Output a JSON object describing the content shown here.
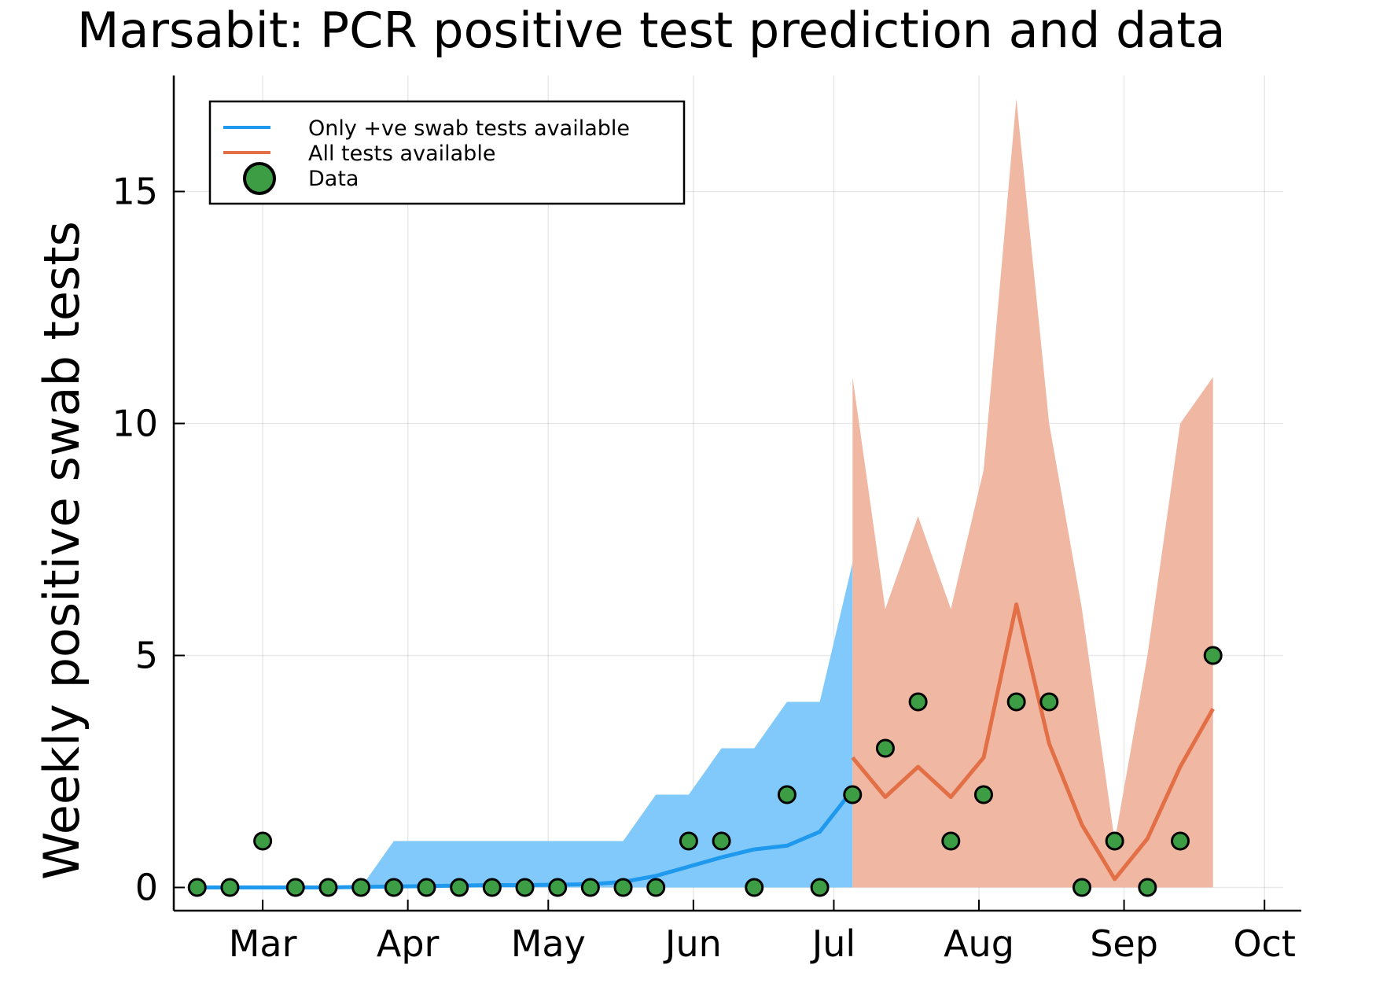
{
  "chart_data": {
    "type": "line",
    "title": "Marsabit: PCR positive test prediction and data",
    "xlabel": "",
    "ylabel": "Weekly positive swab tests",
    "x_axis": {
      "kind": "date",
      "range": [
        "2020-02-11",
        "2020-10-05"
      ],
      "ticks": [
        {
          "date": "2020-03-01",
          "label": "Mar"
        },
        {
          "date": "2020-04-01",
          "label": "Apr"
        },
        {
          "date": "2020-05-01",
          "label": "May"
        },
        {
          "date": "2020-06-01",
          "label": "Jun"
        },
        {
          "date": "2020-07-01",
          "label": "Jul"
        },
        {
          "date": "2020-08-01",
          "label": "Aug"
        },
        {
          "date": "2020-09-01",
          "label": "Sep"
        },
        {
          "date": "2020-10-01",
          "label": "Oct"
        }
      ]
    },
    "y_axis": {
      "range": [
        -0.5,
        17.5
      ],
      "ticks": [
        {
          "value": 0,
          "label": "0"
        },
        {
          "value": 5,
          "label": "5"
        },
        {
          "value": 10,
          "label": "10"
        },
        {
          "value": 15,
          "label": "15"
        }
      ]
    },
    "grid": true,
    "legend_position": "top-left",
    "series": [
      {
        "name": "Only +ve swab tests available",
        "color": "#1f99ee",
        "band_color": "#80c9fa",
        "points": [
          {
            "date": "2020-02-16",
            "y": 0,
            "lo": 0,
            "hi": 0
          },
          {
            "date": "2020-02-23",
            "y": 0,
            "lo": 0,
            "hi": 0
          },
          {
            "date": "2020-03-01",
            "y": 0,
            "lo": 0,
            "hi": 0
          },
          {
            "date": "2020-03-08",
            "y": 0,
            "lo": 0,
            "hi": 0
          },
          {
            "date": "2020-03-15",
            "y": 0,
            "lo": 0,
            "hi": 0
          },
          {
            "date": "2020-03-22",
            "y": 0.01,
            "lo": 0,
            "hi": 0
          },
          {
            "date": "2020-03-29",
            "y": 0.02,
            "lo": 0,
            "hi": 1
          },
          {
            "date": "2020-04-05",
            "y": 0.03,
            "lo": 0,
            "hi": 1
          },
          {
            "date": "2020-04-12",
            "y": 0.04,
            "lo": 0,
            "hi": 1
          },
          {
            "date": "2020-04-19",
            "y": 0.05,
            "lo": 0,
            "hi": 1
          },
          {
            "date": "2020-04-26",
            "y": 0.05,
            "lo": 0,
            "hi": 1
          },
          {
            "date": "2020-05-03",
            "y": 0.06,
            "lo": 0,
            "hi": 1
          },
          {
            "date": "2020-05-10",
            "y": 0.07,
            "lo": 0,
            "hi": 1
          },
          {
            "date": "2020-05-17",
            "y": 0.12,
            "lo": 0,
            "hi": 1
          },
          {
            "date": "2020-05-24",
            "y": 0.25,
            "lo": 0,
            "hi": 2
          },
          {
            "date": "2020-05-31",
            "y": 0.45,
            "lo": 0,
            "hi": 2
          },
          {
            "date": "2020-06-07",
            "y": 0.65,
            "lo": 0,
            "hi": 3
          },
          {
            "date": "2020-06-14",
            "y": 0.82,
            "lo": 0,
            "hi": 3
          },
          {
            "date": "2020-06-21",
            "y": 0.9,
            "lo": 0,
            "hi": 4
          },
          {
            "date": "2020-06-28",
            "y": 1.2,
            "lo": 0,
            "hi": 4
          },
          {
            "date": "2020-07-05",
            "y": 2.1,
            "lo": 0,
            "hi": 7
          }
        ]
      },
      {
        "name": "All tests available",
        "color": "#e26f46",
        "band_color": "#f0b7a2",
        "points": [
          {
            "date": "2020-07-05",
            "y": 2.8,
            "lo": 0,
            "hi": 11
          },
          {
            "date": "2020-07-12",
            "y": 1.95,
            "lo": 0,
            "hi": 6
          },
          {
            "date": "2020-07-19",
            "y": 2.6,
            "lo": 0,
            "hi": 8
          },
          {
            "date": "2020-07-26",
            "y": 1.95,
            "lo": 0,
            "hi": 6
          },
          {
            "date": "2020-08-02",
            "y": 2.8,
            "lo": 0,
            "hi": 9
          },
          {
            "date": "2020-08-09",
            "y": 6.1,
            "lo": 0,
            "hi": 17
          },
          {
            "date": "2020-08-16",
            "y": 3.1,
            "lo": 0,
            "hi": 10
          },
          {
            "date": "2020-08-23",
            "y": 1.35,
            "lo": 0,
            "hi": 6
          },
          {
            "date": "2020-08-30",
            "y": 0.18,
            "lo": 0,
            "hi": 1
          },
          {
            "date": "2020-09-06",
            "y": 1.05,
            "lo": 0,
            "hi": 5
          },
          {
            "date": "2020-09-13",
            "y": 2.6,
            "lo": 0,
            "hi": 10
          },
          {
            "date": "2020-09-20",
            "y": 3.85,
            "lo": 0,
            "hi": 11
          }
        ]
      },
      {
        "name": "Data",
        "kind": "scatter",
        "color": "#3c9d45",
        "points": [
          {
            "date": "2020-02-16",
            "y": 0
          },
          {
            "date": "2020-02-23",
            "y": 0
          },
          {
            "date": "2020-03-01",
            "y": 1
          },
          {
            "date": "2020-03-08",
            "y": 0
          },
          {
            "date": "2020-03-15",
            "y": 0
          },
          {
            "date": "2020-03-22",
            "y": 0
          },
          {
            "date": "2020-03-29",
            "y": 0
          },
          {
            "date": "2020-04-05",
            "y": 0
          },
          {
            "date": "2020-04-12",
            "y": 0
          },
          {
            "date": "2020-04-19",
            "y": 0
          },
          {
            "date": "2020-04-26",
            "y": 0
          },
          {
            "date": "2020-05-03",
            "y": 0
          },
          {
            "date": "2020-05-10",
            "y": 0
          },
          {
            "date": "2020-05-17",
            "y": 0
          },
          {
            "date": "2020-05-24",
            "y": 0
          },
          {
            "date": "2020-05-31",
            "y": 1
          },
          {
            "date": "2020-06-07",
            "y": 1
          },
          {
            "date": "2020-06-14",
            "y": 0
          },
          {
            "date": "2020-06-21",
            "y": 2
          },
          {
            "date": "2020-06-28",
            "y": 0
          },
          {
            "date": "2020-07-05",
            "y": 2
          },
          {
            "date": "2020-07-12",
            "y": 3
          },
          {
            "date": "2020-07-19",
            "y": 4
          },
          {
            "date": "2020-07-26",
            "y": 1
          },
          {
            "date": "2020-08-02",
            "y": 2
          },
          {
            "date": "2020-08-09",
            "y": 4
          },
          {
            "date": "2020-08-16",
            "y": 4
          },
          {
            "date": "2020-08-23",
            "y": 0
          },
          {
            "date": "2020-08-30",
            "y": 1
          },
          {
            "date": "2020-09-06",
            "y": 0
          },
          {
            "date": "2020-09-13",
            "y": 1
          },
          {
            "date": "2020-09-20",
            "y": 5
          }
        ]
      }
    ]
  }
}
